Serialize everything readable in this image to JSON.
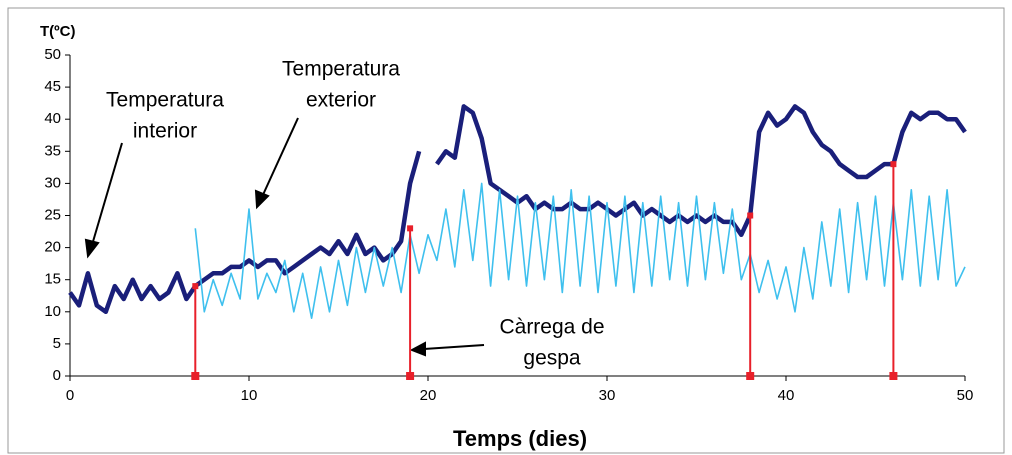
{
  "chart_data": {
    "type": "line",
    "ylabel": "T(ºC)",
    "xlabel": "Temps (dies)",
    "x": [
      0,
      0.5,
      1,
      1.5,
      2,
      2.5,
      3,
      3.5,
      4,
      4.5,
      5,
      5.5,
      6,
      6.5,
      7,
      7.5,
      8,
      8.5,
      9,
      9.5,
      10,
      10.5,
      11,
      11.5,
      12,
      12.5,
      13,
      13.5,
      14,
      14.5,
      15,
      15.5,
      16,
      16.5,
      17,
      17.5,
      18,
      18.5,
      19,
      19.5,
      20,
      20.5,
      21,
      21.5,
      22,
      22.5,
      23,
      23.5,
      24,
      24.5,
      25,
      25.5,
      26,
      26.5,
      27,
      27.5,
      28,
      28.5,
      29,
      29.5,
      30,
      30.5,
      31,
      31.5,
      32,
      32.5,
      33,
      33.5,
      34,
      34.5,
      35,
      35.5,
      36,
      36.5,
      37,
      37.5,
      38,
      38.5,
      39,
      39.5,
      40,
      40.5,
      41,
      41.5,
      42,
      42.5,
      43,
      43.5,
      44,
      44.5,
      45,
      45.5,
      46,
      46.5,
      47,
      47.5,
      48,
      48.5,
      49,
      49.5,
      50
    ],
    "series": [
      {
        "color": "#1a1f7a",
        "values": [
          13,
          11,
          16,
          11,
          10,
          14,
          12,
          15,
          12,
          14,
          12,
          13,
          16,
          12,
          14,
          15,
          16,
          16,
          17,
          17,
          18,
          17,
          18,
          18,
          16,
          17,
          18,
          19,
          20,
          19,
          21,
          19,
          22,
          19,
          20,
          18,
          19,
          21,
          30,
          35,
          null,
          33,
          35,
          34,
          42,
          41,
          37,
          30,
          29,
          28,
          27,
          28,
          26,
          27,
          26,
          26,
          27,
          26,
          26,
          27,
          26,
          25,
          26,
          27,
          25,
          26,
          25,
          24,
          25,
          24,
          25,
          24,
          25,
          24,
          24,
          22,
          25,
          38,
          41,
          39,
          40,
          42,
          41,
          38,
          36,
          35,
          33,
          32,
          31,
          31,
          32,
          33,
          33,
          38,
          41,
          40,
          41,
          41,
          40,
          40,
          38
        ]
      },
      {
        "color": "#3fc0ee",
        "values": [
          null,
          null,
          null,
          null,
          null,
          null,
          null,
          null,
          null,
          null,
          null,
          null,
          null,
          null,
          23,
          10,
          15,
          11,
          16,
          12,
          26,
          12,
          16,
          13,
          18,
          10,
          16,
          9,
          17,
          10,
          18,
          11,
          20,
          13,
          20,
          14,
          20,
          13,
          22,
          16,
          22,
          18,
          26,
          17,
          29,
          18,
          30,
          14,
          29,
          15,
          28,
          14,
          27,
          15,
          28,
          13,
          29,
          14,
          28,
          13,
          27,
          14,
          28,
          13,
          27,
          14,
          28,
          15,
          27,
          14,
          28,
          15,
          27,
          16,
          26,
          15,
          19,
          13,
          18,
          12,
          17,
          10,
          20,
          12,
          24,
          14,
          26,
          13,
          27,
          15,
          28,
          14,
          27,
          15,
          29,
          14,
          28,
          15,
          29,
          14,
          17
        ]
      }
    ],
    "events": {
      "color": "#e8202a",
      "x": [
        7,
        19,
        38,
        46
      ],
      "values": [
        14,
        23,
        25,
        33
      ]
    },
    "annotations": [
      {
        "lines": [
          "Temperatura",
          "interior"
        ]
      },
      {
        "lines": [
          "Temperatura",
          "exterior"
        ]
      },
      {
        "lines": [
          "Càrrega de",
          "gespa"
        ]
      }
    ],
    "xlim": [
      0,
      50
    ],
    "xticks": [
      0,
      10,
      20,
      30,
      40,
      50
    ],
    "ylim": [
      0,
      50
    ],
    "yticks": [
      0,
      5,
      10,
      15,
      20,
      25,
      30,
      35,
      40,
      45,
      50
    ]
  }
}
